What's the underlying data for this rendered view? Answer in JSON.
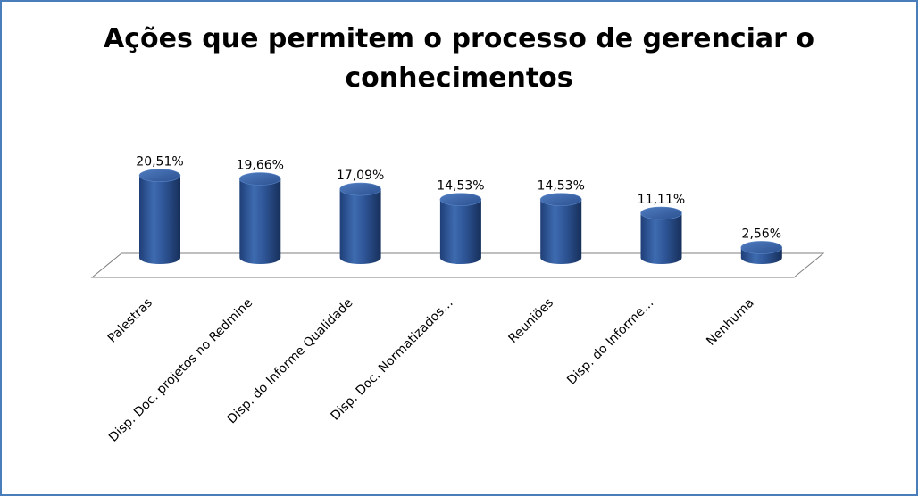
{
  "chart_data": {
    "type": "bar",
    "title_line1": "Ações que permitem o processo de gerenciar o",
    "title_line2": "conhecimentos",
    "categories": [
      "Palestras",
      "Disp. Doc. projetos no Redmine",
      "Disp. do Informe Qualidade",
      "Disp. Doc. Normatizados…",
      "Reuniões",
      "Disp. do Informe…",
      "Nenhuma"
    ],
    "values": [
      20.51,
      19.66,
      17.09,
      14.53,
      14.53,
      11.11,
      2.56
    ],
    "data_labels": [
      "20,51%",
      "19,66%",
      "17,09%",
      "14,53%",
      "14,53%",
      "11,11%",
      "2,56%"
    ],
    "unit": "%",
    "ylim": [
      0,
      22
    ],
    "grid": false,
    "legend": "none",
    "style": "3d-cylinder",
    "bar_color": "#2e5596",
    "frame_color": "#4a7ebb"
  }
}
